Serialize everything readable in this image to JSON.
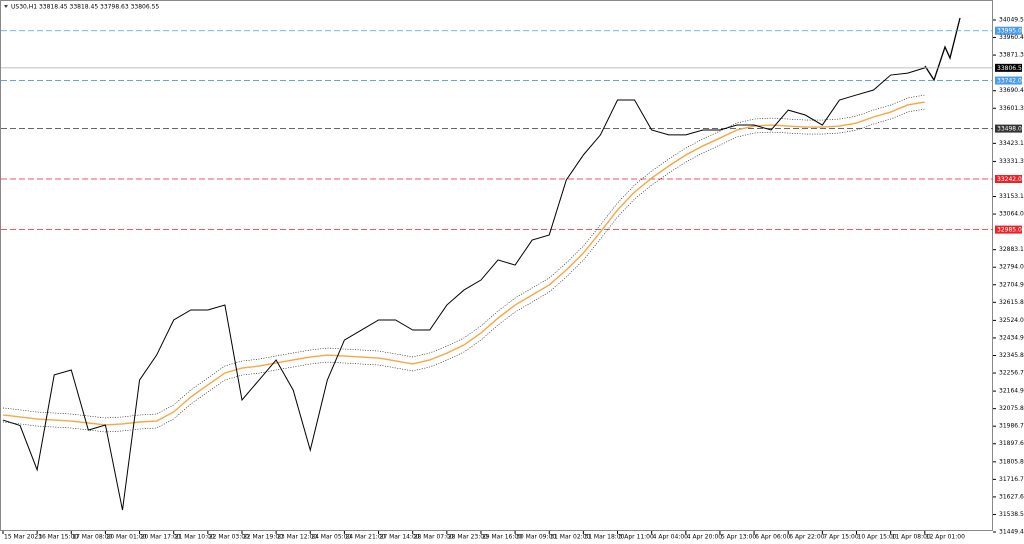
{
  "chart_data": {
    "type": "line",
    "title": "US30,H1  33818.45 33818.45 33798.63 33806.55",
    "categories": [
      "15 Mar 2023",
      null,
      "16 Mar 15:00",
      null,
      "17 Mar 08:00",
      null,
      "20 Mar 01:00",
      null,
      "20 Mar 17:00",
      null,
      "21 Mar 10:00",
      null,
      "22 Mar 03:00",
      null,
      "22 Mar 19:00",
      null,
      "23 Mar 12:00",
      null,
      "24 Mar 05:00",
      null,
      "24 Mar 21:00",
      null,
      "27 Mar 14:00",
      null,
      "28 Mar 07:00",
      null,
      "28 Mar 23:00",
      null,
      "29 Mar 16:00",
      null,
      "30 Mar 09:00",
      null,
      "31 Mar 02:00",
      null,
      "31 Mar 18:00",
      null,
      "3 Apr 11:00",
      null,
      "4 Apr 04:00",
      null,
      "4 Apr 20:00",
      null,
      "5 Apr 13:00",
      null,
      "6 Apr 06:00",
      null,
      "6 Apr 22:00",
      null,
      "7 Apr 15:00",
      null,
      "10 Apr 15:00",
      null,
      "11 Apr 08:00",
      null,
      "12 Apr 01:00"
    ],
    "values": [
      32018,
      31990,
      31765,
      32247,
      32272,
      31967,
      31993,
      31561,
      32221,
      32348,
      32526,
      32577,
      32577,
      32602,
      32120,
      32221,
      32323,
      32170,
      31865,
      32221,
      32424,
      32475,
      32526,
      32526,
      32475,
      32475,
      32602,
      32678,
      32729,
      32831,
      32805,
      32932,
      32958,
      33237,
      33364,
      33466,
      33643,
      33643,
      33491,
      33466,
      33466,
      33491,
      33491,
      33516,
      33516,
      33491,
      33592,
      33567,
      33516,
      33643,
      33669,
      33694,
      33770,
      33780,
      33806.55
    ],
    "color": "#000000",
    "ma_values": [
      32044,
      32034,
      32023,
      32018,
      32013,
      32003,
      31993,
      31998,
      32008,
      32013,
      32059,
      32135,
      32196,
      32257,
      32282,
      32292,
      32308,
      32323,
      32338,
      32348,
      32343,
      32338,
      32333,
      32318,
      32303,
      32323,
      32358,
      32399,
      32460,
      32536,
      32602,
      32653,
      32704,
      32780,
      32866,
      32973,
      33085,
      33176,
      33247,
      33308,
      33364,
      33410,
      33450,
      33491,
      33511,
      33516,
      33511,
      33506,
      33506,
      33511,
      33526,
      33557,
      33582,
      33618,
      33633
    ],
    "ma_color": "#f5a742",
    "ylim": [
      31408.8,
      34125.7
    ],
    "yticks": [
      34049.52,
      33960.42,
      33871.32,
      33690.42,
      33601.32,
      33423.12,
      33331.32,
      33153.12,
      33064.02,
      32883.12,
      32794.02,
      32704.92,
      32615.82,
      32524.02,
      32434.92,
      32345.82,
      32256.72,
      32164.92,
      32075.82,
      31986.72,
      31897.62,
      31805.82,
      31716.72,
      31627.62,
      31538.52,
      31449.42
    ],
    "levels": [
      {
        "value": 33995.0,
        "label": "33995.00",
        "color": "#4a9be8",
        "style": "dashed"
      },
      {
        "value": 33806.55,
        "label": "33806.55",
        "color": "#000000",
        "style": "solid"
      },
      {
        "value": 33742.0,
        "label": "33742.00",
        "color": "#4a9be8",
        "style": "dashed"
      },
      {
        "value": 33498.0,
        "label": "33498.00",
        "color": "#333333",
        "style": "dashed"
      },
      {
        "value": 33242.0,
        "label": "33242.00",
        "color": "#e8242a",
        "style": "dashed"
      },
      {
        "value": 32985.0,
        "label": "32985.00",
        "color": "#e8242a",
        "style": "dashed"
      }
    ]
  }
}
